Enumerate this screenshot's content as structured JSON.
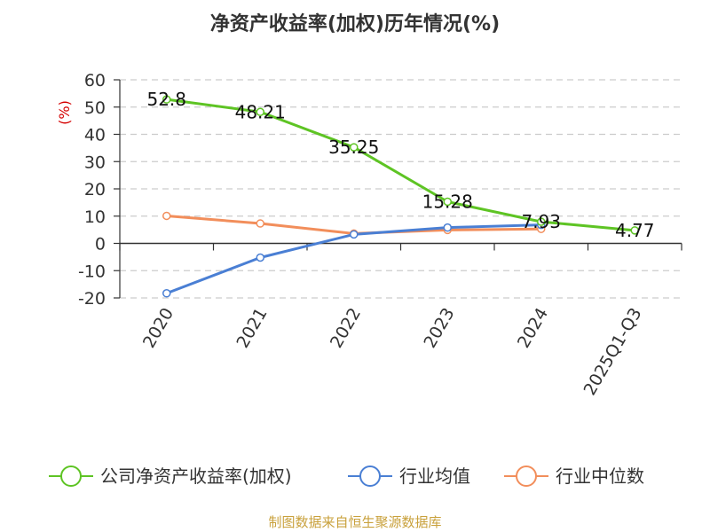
{
  "chart_data": {
    "type": "line",
    "title": "净资产收益率(加权)历年情况(%)",
    "ylabel": "(%)",
    "xlabel": "",
    "categories": [
      "2020",
      "2021",
      "2022",
      "2023",
      "2024",
      "2025Q1-Q3"
    ],
    "ylim": [
      -20,
      60
    ],
    "yticks": [
      -20,
      -10,
      0,
      10,
      20,
      30,
      40,
      50,
      60
    ],
    "ytick_labels": [
      "-20",
      "-10",
      "0",
      "10",
      "20",
      "30",
      "40",
      "50",
      "60"
    ],
    "grid": true,
    "legend_position": "bottom",
    "series": [
      {
        "name": "公司净资产收益率(加权)",
        "color": "#5ec424",
        "values": [
          52.8,
          48.21,
          35.25,
          15.28,
          7.93,
          4.77
        ],
        "data_labels": [
          "52.8",
          "48.21",
          "35.25",
          "15.28",
          "7.93",
          "4.77"
        ]
      },
      {
        "name": "行业均值",
        "color": "#4a7fd4",
        "values": [
          -18.3,
          -5.2,
          3.3,
          5.8,
          6.8,
          null
        ]
      },
      {
        "name": "行业中位数",
        "color": "#f28e5b",
        "values": [
          10.1,
          7.3,
          3.6,
          4.9,
          5.3,
          null
        ]
      }
    ]
  },
  "source": "制图数据来自恒生聚源数据库"
}
